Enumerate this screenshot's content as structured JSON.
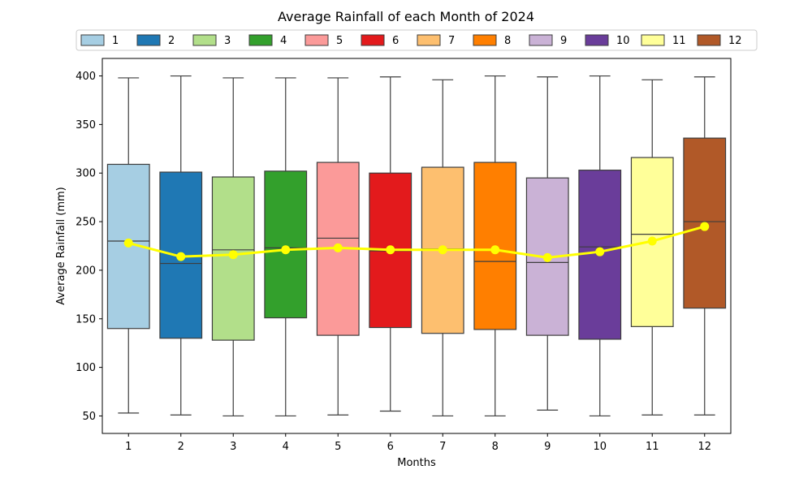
{
  "chart_data": {
    "type": "box",
    "title": "Average Rainfall of each Month of 2024",
    "xlabel": "Months",
    "ylabel": "Average Rainfall (mm)",
    "ylim": [
      32,
      418
    ],
    "yticks": [
      50,
      100,
      150,
      200,
      250,
      300,
      350,
      400
    ],
    "legend": {
      "placement": "top"
    },
    "categories": [
      "1",
      "2",
      "3",
      "4",
      "5",
      "6",
      "7",
      "8",
      "9",
      "10",
      "11",
      "12"
    ],
    "colors": [
      "#a6cee3",
      "#1f78b4",
      "#b2df8a",
      "#33a02c",
      "#fb9a99",
      "#e31a1c",
      "#fdbf6f",
      "#ff7f00",
      "#cab2d6",
      "#6a3d9a",
      "#ffff99",
      "#b15928"
    ],
    "boxes": [
      {
        "min": 53,
        "q1": 140,
        "median": 230,
        "q3": 309,
        "max": 398
      },
      {
        "min": 51,
        "q1": 130,
        "median": 207,
        "q3": 301,
        "max": 400
      },
      {
        "min": 50,
        "q1": 128,
        "median": 221,
        "q3": 296,
        "max": 398
      },
      {
        "min": 50,
        "q1": 151,
        "median": 223,
        "q3": 302,
        "max": 398
      },
      {
        "min": 51,
        "q1": 133,
        "median": 233,
        "q3": 311,
        "max": 398
      },
      {
        "min": 55,
        "q1": 141,
        "median": 220,
        "q3": 300,
        "max": 399
      },
      {
        "min": 50,
        "q1": 135,
        "median": 222,
        "q3": 306,
        "max": 396
      },
      {
        "min": 50,
        "q1": 139,
        "median": 209,
        "q3": 311,
        "max": 400
      },
      {
        "min": 56,
        "q1": 133,
        "median": 208,
        "q3": 295,
        "max": 399
      },
      {
        "min": 50,
        "q1": 129,
        "median": 224,
        "q3": 303,
        "max": 400
      },
      {
        "min": 51,
        "q1": 142,
        "median": 237,
        "q3": 316,
        "max": 396
      },
      {
        "min": 51,
        "q1": 161,
        "median": 250,
        "q3": 336,
        "max": 399
      }
    ],
    "mean_line": {
      "color": "#ffff00",
      "values": [
        228,
        214,
        216,
        221,
        223,
        221,
        221,
        221,
        213,
        219,
        230,
        245
      ]
    },
    "grid": false
  }
}
